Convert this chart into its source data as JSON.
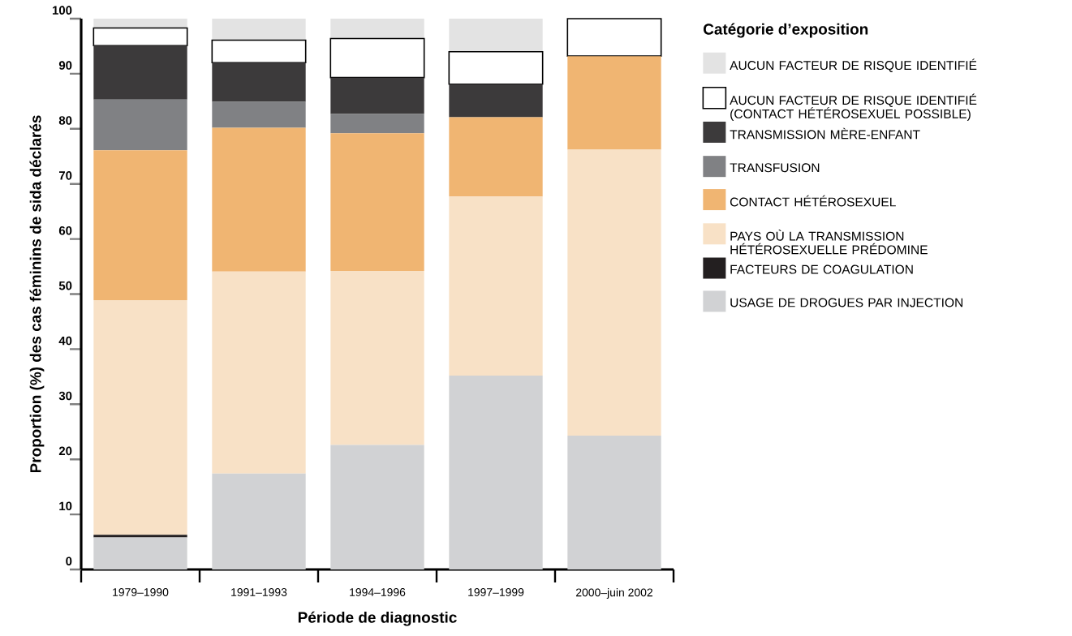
{
  "chart_data": {
    "type": "bar",
    "stacked": true,
    "xlabel": "Période de diagnostic",
    "ylabel": "Proportion (%) des cas féminins de sida déclarés",
    "legend_title": "Catégorie d’exposition",
    "legend": "right",
    "categories": [
      "1979–1990",
      "1991–1993",
      "1994–1996",
      "1997–1999",
      "2000–juin 2002"
    ],
    "ylim": [
      0,
      100
    ],
    "yticks": [
      0,
      10,
      20,
      30,
      40,
      50,
      60,
      70,
      80,
      90,
      100
    ],
    "series": [
      {
        "name": "USAGE DE DROGUES PAR INJECTION",
        "color": "#d1d2d4",
        "values": [
          5.8,
          17.4,
          22.6,
          35.2,
          24.3
        ]
      },
      {
        "name": "FACTEURS DE COAGULATION",
        "color": "#231f20",
        "values": [
          0.5,
          0,
          0,
          0,
          0
        ]
      },
      {
        "name": "PAYS OÙ LA TRANSMISSION HÉTÉROSEXUELLE PRÉDOMINE",
        "color": "#f8e1c6",
        "values": [
          42.6,
          36.7,
          31.6,
          32.5,
          51.9
        ]
      },
      {
        "name": "CONTACT HÉTÉROSEXUEL",
        "color": "#f0b572",
        "values": [
          27.2,
          26.1,
          25.0,
          14.4,
          17.0
        ]
      },
      {
        "name": "TRANSFUSION",
        "color": "#808184",
        "values": [
          9.2,
          4.7,
          3.5,
          0,
          0
        ]
      },
      {
        "name": "TRANSMISSION MÈRE-ENFANT",
        "color": "#3c3a3b",
        "values": [
          9.8,
          7.1,
          6.6,
          6.0,
          0
        ]
      },
      {
        "name": "AUCUN FACTEUR DE RISQUE IDENTIFIÉ (CONTACT HÉTÉROSEXUEL POSSIBLE)",
        "color": "#ffffff",
        "values": [
          3.2,
          4.1,
          7.1,
          5.9,
          6.8
        ]
      },
      {
        "name": "AUCUN FACTEUR DE RISQUE IDENTIFIÉ",
        "color": "#e3e3e3",
        "values": [
          1.7,
          3.9,
          3.6,
          6.0,
          0
        ]
      }
    ]
  }
}
